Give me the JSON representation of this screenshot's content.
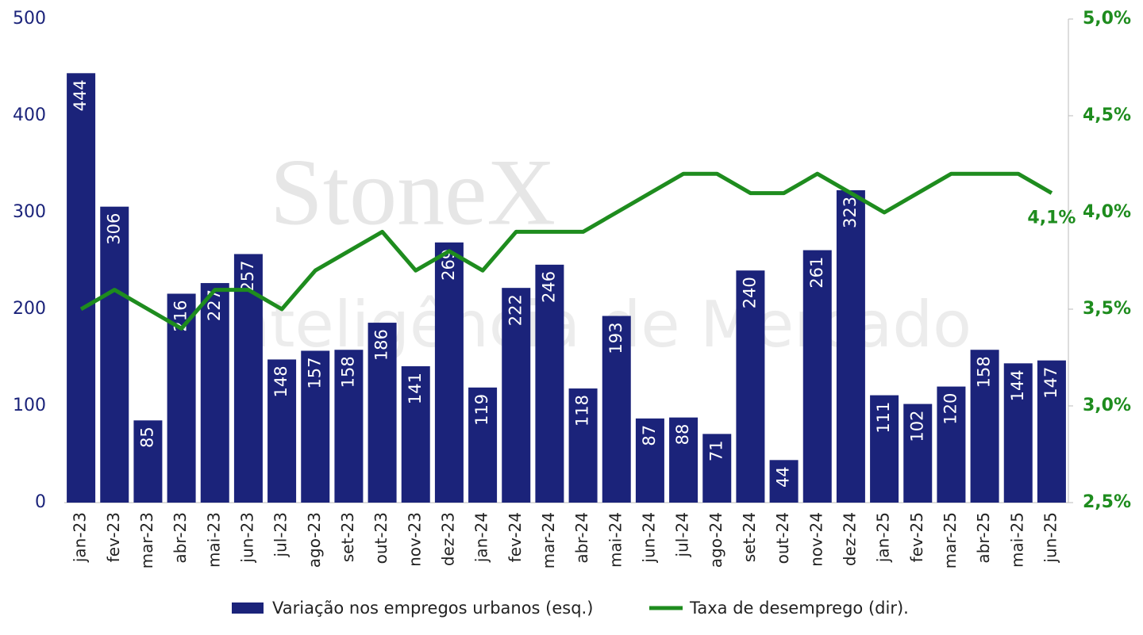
{
  "chart_data": {
    "type": "bar-line",
    "watermark": [
      "StoneX",
      "Inteligência de Mercado"
    ],
    "categories": [
      "jan-23",
      "fev-23",
      "mar-23",
      "abr-23",
      "mai-23",
      "jun-23",
      "jul-23",
      "ago-23",
      "set-23",
      "out-23",
      "nov-23",
      "dez-23",
      "jan-24",
      "fev-24",
      "mar-24",
      "abr-24",
      "mai-24",
      "jun-24",
      "jul-24",
      "ago-24",
      "set-24",
      "out-24",
      "nov-24",
      "dez-24",
      "jan-25",
      "fev-25",
      "mar-25",
      "abr-25",
      "mai-25",
      "jun-25"
    ],
    "series": [
      {
        "name": "Variação nos empregos urbanos (esq.)",
        "type": "bar",
        "color": "#1b237a",
        "values": [
          444,
          306,
          85,
          216,
          227,
          257,
          148,
          157,
          158,
          186,
          141,
          269,
          119,
          222,
          246,
          118,
          193,
          87,
          88,
          71,
          240,
          44,
          261,
          323,
          111,
          102,
          120,
          158,
          144,
          147
        ]
      },
      {
        "name": "Taxa de desemprego (dir).",
        "type": "line",
        "axis": "y2",
        "color": "#1e8c1e",
        "values": [
          3.5,
          3.6,
          3.5,
          3.4,
          3.6,
          3.6,
          3.5,
          3.7,
          3.8,
          3.9,
          3.7,
          3.8,
          3.7,
          3.9,
          3.9,
          3.9,
          4.0,
          4.1,
          4.2,
          4.2,
          4.1,
          4.1,
          4.2,
          4.1,
          4.0,
          4.1,
          4.2,
          4.2,
          4.2,
          4.1
        ],
        "value_labels": [
          null,
          null,
          null,
          null,
          null,
          null,
          null,
          null,
          null,
          null,
          null,
          null,
          null,
          null,
          null,
          null,
          null,
          null,
          null,
          null,
          null,
          null,
          null,
          null,
          null,
          null,
          null,
          null,
          null,
          "4,1%"
        ]
      }
    ],
    "ylim": [
      0,
      500
    ],
    "yticks": [
      0,
      100,
      200,
      300,
      400,
      500
    ],
    "y2lim": [
      2.5,
      5.0
    ],
    "y2ticks": [
      {
        "value": 2.5,
        "label": "2,5%"
      },
      {
        "value": 3.0,
        "label": "3,0%"
      },
      {
        "value": 3.5,
        "label": "3,5%"
      },
      {
        "value": 4.0,
        "label": "4,0%"
      },
      {
        "value": 4.5,
        "label": "4,5%"
      },
      {
        "value": 5.0,
        "label": "5,0%"
      }
    ]
  }
}
